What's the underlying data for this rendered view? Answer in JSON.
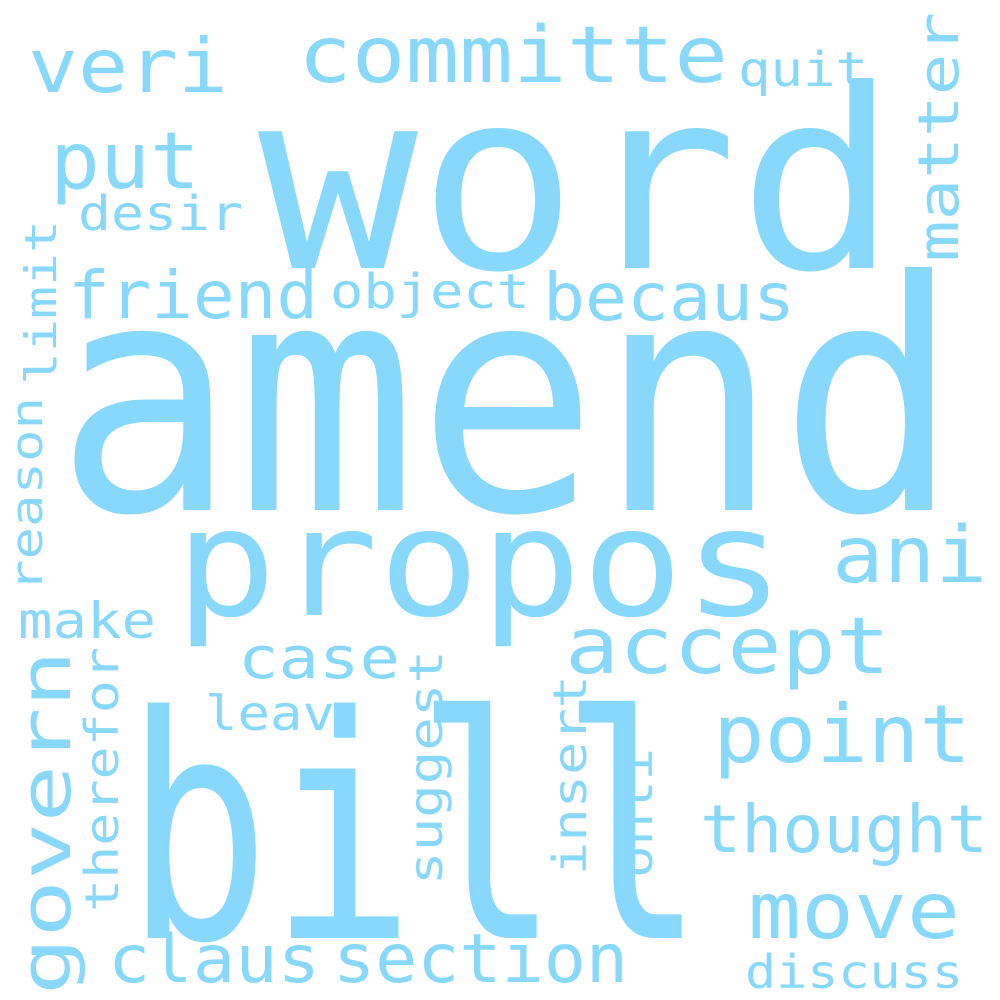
{
  "colors": {
    "background": "#ffffff",
    "word": "#87d8fa"
  },
  "words": [
    {
      "key": "amend",
      "text": "amend",
      "weight": 1.0,
      "orientation": "horizontal"
    },
    {
      "key": "word",
      "text": "word",
      "weight": 0.86,
      "orientation": "horizontal"
    },
    {
      "key": "bill",
      "text": "bill",
      "weight": 0.9,
      "orientation": "horizontal"
    },
    {
      "key": "propos",
      "text": "propos",
      "weight": 0.5,
      "orientation": "horizontal"
    },
    {
      "key": "committe",
      "text": "committe",
      "weight": 0.27,
      "orientation": "horizontal"
    },
    {
      "key": "veri",
      "text": "veri",
      "weight": 0.26,
      "orientation": "horizontal"
    },
    {
      "key": "put",
      "text": "put",
      "weight": 0.27,
      "orientation": "horizontal"
    },
    {
      "key": "quit",
      "text": "quit",
      "weight": 0.17,
      "orientation": "horizontal"
    },
    {
      "key": "matter",
      "text": "matter",
      "weight": 0.2,
      "orientation": "vertical"
    },
    {
      "key": "desir",
      "text": "desir",
      "weight": 0.17,
      "orientation": "horizontal"
    },
    {
      "key": "limit",
      "text": "limit",
      "weight": 0.17,
      "orientation": "vertical"
    },
    {
      "key": "friend",
      "text": "friend",
      "weight": 0.24,
      "orientation": "horizontal"
    },
    {
      "key": "object",
      "text": "object",
      "weight": 0.17,
      "orientation": "horizontal"
    },
    {
      "key": "becaus",
      "text": "becaus",
      "weight": 0.24,
      "orientation": "horizontal"
    },
    {
      "key": "reason",
      "text": "reason",
      "weight": 0.17,
      "orientation": "vertical"
    },
    {
      "key": "ani",
      "text": "ani",
      "weight": 0.27,
      "orientation": "horizontal"
    },
    {
      "key": "make",
      "text": "make",
      "weight": 0.17,
      "orientation": "horizontal"
    },
    {
      "key": "accept",
      "text": "accept",
      "weight": 0.27,
      "orientation": "horizontal"
    },
    {
      "key": "case",
      "text": "case",
      "weight": 0.2,
      "orientation": "horizontal"
    },
    {
      "key": "govern",
      "text": "govern",
      "weight": 0.27,
      "orientation": "vertical"
    },
    {
      "key": "therefor",
      "text": "therefor",
      "weight": 0.17,
      "orientation": "vertical"
    },
    {
      "key": "leav",
      "text": "leav",
      "weight": 0.17,
      "orientation": "horizontal"
    },
    {
      "key": "suggest",
      "text": "suggest",
      "weight": 0.17,
      "orientation": "vertical"
    },
    {
      "key": "insert",
      "text": "insert",
      "weight": 0.17,
      "orientation": "vertical"
    },
    {
      "key": "onli",
      "text": "onli",
      "weight": 0.17,
      "orientation": "vertical"
    },
    {
      "key": "point",
      "text": "point",
      "weight": 0.27,
      "orientation": "horizontal"
    },
    {
      "key": "thought",
      "text": "thought",
      "weight": 0.24,
      "orientation": "horizontal"
    },
    {
      "key": "move",
      "text": "move",
      "weight": 0.27,
      "orientation": "horizontal"
    },
    {
      "key": "claus",
      "text": "claus",
      "weight": 0.24,
      "orientation": "horizontal"
    },
    {
      "key": "section",
      "text": "section",
      "weight": 0.24,
      "orientation": "horizontal"
    },
    {
      "key": "discuss",
      "text": "discuss",
      "weight": 0.17,
      "orientation": "horizontal"
    }
  ]
}
